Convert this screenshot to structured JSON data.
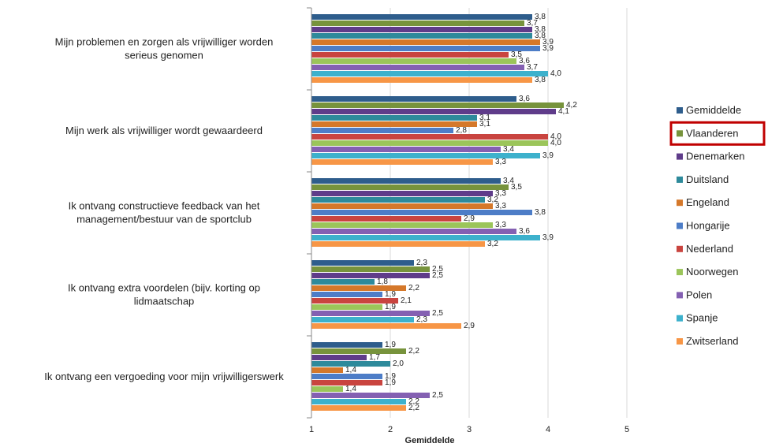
{
  "chart_data": {
    "type": "bar",
    "orientation": "horizontal",
    "categories": [
      [
        "Mijn problemen en zorgen als vrijwilliger worden",
        "serieus genomen"
      ],
      [
        "Mijn werk als vrijwilliger wordt gewaardeerd"
      ],
      [
        "Ik ontvang constructieve feedback van het",
        "management/bestuur van de sportclub"
      ],
      [
        "Ik ontvang extra voordelen (bijv. korting op",
        "lidmaatschap"
      ],
      [
        "Ik ontvang een vergoeding voor mijn vrijwilligerswerk"
      ]
    ],
    "series": [
      {
        "name": "Gemiddelde",
        "color": "#2E5D8C",
        "values": [
          3.8,
          3.6,
          3.4,
          2.3,
          1.9
        ]
      },
      {
        "name": "Vlaanderen",
        "color": "#77933C",
        "values": [
          3.7,
          4.2,
          3.5,
          2.5,
          2.2
        ]
      },
      {
        "name": "Denemarken",
        "color": "#5F3C8A",
        "values": [
          3.8,
          4.1,
          3.3,
          2.5,
          1.7
        ]
      },
      {
        "name": "Duitsland",
        "color": "#2E8A9B",
        "values": [
          3.8,
          3.1,
          3.2,
          1.8,
          2.0
        ]
      },
      {
        "name": "Engeland",
        "color": "#D5782A",
        "values": [
          3.9,
          3.1,
          3.3,
          2.2,
          1.4
        ]
      },
      {
        "name": "Hongarije",
        "color": "#4D7DC7",
        "values": [
          3.9,
          2.8,
          3.8,
          1.9,
          1.9
        ]
      },
      {
        "name": "Nederland",
        "color": "#C9443F",
        "values": [
          3.5,
          4.0,
          2.9,
          2.1,
          1.9
        ]
      },
      {
        "name": "Noorwegen",
        "color": "#9BC55A",
        "values": [
          3.6,
          4.0,
          3.3,
          1.9,
          1.4
        ]
      },
      {
        "name": "Polen",
        "color": "#8460B2",
        "values": [
          3.7,
          3.4,
          3.6,
          2.5,
          2.5
        ]
      },
      {
        "name": "Spanje",
        "color": "#3DB1CC",
        "values": [
          4.0,
          3.9,
          3.9,
          2.3,
          2.2
        ]
      },
      {
        "name": "Zwitserland",
        "color": "#F79646",
        "values": [
          3.8,
          3.3,
          3.2,
          2.9,
          2.2
        ]
      }
    ],
    "data_labels": [
      [
        "3,8",
        "3,7",
        "3,8",
        "3,8",
        "3,9",
        "3,9",
        "3,5",
        "3,6",
        "3,7",
        "4,0",
        "3,8"
      ],
      [
        "3,6",
        "4,2",
        "4,1",
        "3,1",
        "3,1",
        "2,8",
        "4,0",
        "4,0",
        "3,4",
        "3,9",
        "3,3"
      ],
      [
        "3,4",
        "3,5",
        "3,3",
        "3,2",
        "3,3",
        "3,8",
        "2,9",
        "3,3",
        "3,6",
        "3,9",
        "3,2"
      ],
      [
        "2,3",
        "2,5",
        "2,5",
        "1,8",
        "2,2",
        "1,9",
        "2,1",
        "1,9",
        "2,5",
        "2,3",
        "2,9"
      ],
      [
        "1,9",
        "2,2",
        "1,7",
        "2,0",
        "1,4",
        "1,9",
        "1,9",
        "1,4",
        "2,5",
        "2,2",
        "2,2"
      ]
    ],
    "xlim": [
      1,
      5
    ],
    "xticks": [
      "1",
      "2",
      "3",
      "4",
      "5"
    ],
    "xlabel": "Gemiddelde",
    "ylabel": "",
    "title": "",
    "grid": true,
    "legend_position": "right",
    "highlighted_legend_entry": "Vlaanderen",
    "highlight_color": "#C00000"
  }
}
